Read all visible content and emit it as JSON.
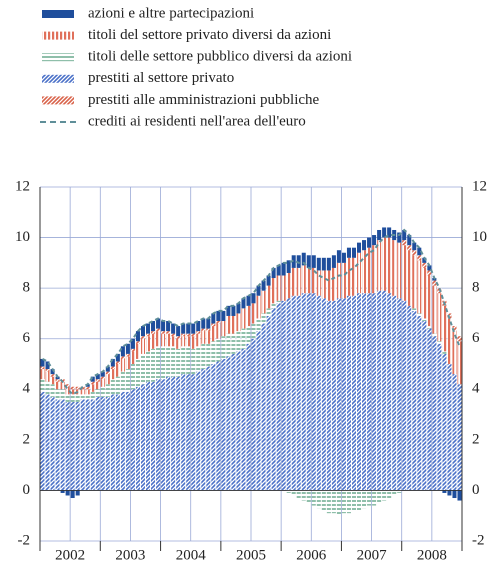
{
  "chart_data": {
    "type": "stacked_bar_line",
    "x_labels": [
      "2002",
      "2003",
      "2004",
      "2005",
      "2006",
      "2007",
      "2008"
    ],
    "ylim": [
      -2,
      12
    ],
    "yticks": [
      -2,
      0,
      2,
      4,
      6,
      8,
      10,
      12
    ],
    "grid": true,
    "right_axis_labels": true,
    "series": [
      {
        "name": "azioni e altre partecipazioni",
        "color": "#1f4e9c",
        "pattern": "solid",
        "stack_order": 4,
        "values": [
          0.3,
          0.3,
          0.2,
          0.1,
          -0.1,
          -0.2,
          -0.3,
          -0.2,
          0.0,
          0.1,
          0.2,
          0.2,
          0.2,
          0.2,
          0.3,
          0.3,
          0.4,
          0.4,
          0.4,
          0.4,
          0.4,
          0.4,
          0.4,
          0.4,
          0.4,
          0.4,
          0.4,
          0.4,
          0.4,
          0.4,
          0.4,
          0.4,
          0.4,
          0.4,
          0.4,
          0.4,
          0.4,
          0.4,
          0.4,
          0.4,
          0.4,
          0.4,
          0.4,
          0.4,
          0.4,
          0.4,
          0.4,
          0.4,
          0.5,
          0.5,
          0.5,
          0.5,
          0.5,
          0.5,
          0.5,
          0.5,
          0.5,
          0.5,
          0.5,
          0.5,
          0.4,
          0.4,
          0.4,
          0.4,
          0.4,
          0.4,
          0.4,
          0.4,
          0.4,
          0.4,
          0.4,
          0.4,
          0.4,
          0.4,
          0.3,
          0.3,
          0.2,
          0.2,
          0.1,
          0.0,
          -0.1,
          -0.2,
          -0.3,
          -0.4
        ]
      },
      {
        "name": "titoli del settore privato diversi da azioni",
        "color": "#e0705a",
        "pattern": "vertical",
        "stack_order": 2,
        "values": [
          0.4,
          0.4,
          0.3,
          0.3,
          0.3,
          0.3,
          0.2,
          0.2,
          0.2,
          0.2,
          0.3,
          0.3,
          0.3,
          0.4,
          0.4,
          0.5,
          0.5,
          0.5,
          0.5,
          0.6,
          0.6,
          0.6,
          0.6,
          0.6,
          0.5,
          0.5,
          0.4,
          0.4,
          0.4,
          0.4,
          0.5,
          0.5,
          0.5,
          0.5,
          0.6,
          0.6,
          0.6,
          0.7,
          0.7,
          0.7,
          0.8,
          0.8,
          0.8,
          0.9,
          0.9,
          0.9,
          1.0,
          1.0,
          1.0,
          1.0,
          1.1,
          1.1,
          1.1,
          1.0,
          1.0,
          1.0,
          1.1,
          1.2,
          1.3,
          1.4,
          1.4,
          1.5,
          1.5,
          1.6,
          1.7,
          1.8,
          1.9,
          2.0,
          2.1,
          2.2,
          2.2,
          2.2,
          2.2,
          2.2,
          2.1,
          2.1,
          2.0,
          2.0,
          1.9,
          1.9,
          1.8,
          1.8,
          1.7,
          1.7
        ]
      },
      {
        "name": "titoli delle settore pubblico diversi da azioni",
        "color": "#8fbfaa",
        "pattern": "horizontal",
        "stack_order": 1,
        "values": [
          0.5,
          0.5,
          0.5,
          0.4,
          0.4,
          0.3,
          0.3,
          0.3,
          0.2,
          0.2,
          0.3,
          0.3,
          0.4,
          0.5,
          0.6,
          0.7,
          0.8,
          0.9,
          1.0,
          1.1,
          1.2,
          1.2,
          1.3,
          1.3,
          1.3,
          1.2,
          1.2,
          1.1,
          1.1,
          1.1,
          1.0,
          1.0,
          1.0,
          0.9,
          0.9,
          0.9,
          0.9,
          0.9,
          0.8,
          0.8,
          0.8,
          0.7,
          0.6,
          0.5,
          0.4,
          0.3,
          0.2,
          0.1,
          0.0,
          -0.1,
          -0.2,
          -0.3,
          -0.4,
          -0.5,
          -0.6,
          -0.7,
          -0.8,
          -0.9,
          -0.9,
          -1.0,
          -0.9,
          -0.9,
          -0.8,
          -0.8,
          -0.7,
          -0.6,
          -0.6,
          -0.5,
          -0.4,
          -0.3,
          -0.2,
          -0.1,
          0.0,
          0.0,
          0.1,
          0.1,
          0.1,
          0.1,
          0.1,
          0.1,
          0.1,
          0.0,
          0.0,
          0.0
        ]
      },
      {
        "name": "prestiti al settore privato",
        "color": "#4a70c8",
        "pattern": "diagonal",
        "stack_order": 0,
        "values": [
          3.9,
          3.8,
          3.7,
          3.6,
          3.6,
          3.5,
          3.5,
          3.5,
          3.6,
          3.6,
          3.6,
          3.7,
          3.7,
          3.7,
          3.8,
          3.8,
          3.9,
          3.9,
          4.0,
          4.1,
          4.2,
          4.3,
          4.3,
          4.4,
          4.4,
          4.5,
          4.5,
          4.5,
          4.6,
          4.6,
          4.6,
          4.7,
          4.8,
          4.9,
          5.0,
          5.1,
          5.2,
          5.3,
          5.4,
          5.5,
          5.6,
          5.8,
          6.0,
          6.3,
          6.6,
          6.9,
          7.2,
          7.4,
          7.5,
          7.6,
          7.7,
          7.7,
          7.8,
          7.8,
          7.8,
          7.7,
          7.6,
          7.5,
          7.5,
          7.6,
          7.6,
          7.7,
          7.7,
          7.8,
          7.8,
          7.8,
          7.8,
          7.9,
          7.9,
          7.8,
          7.7,
          7.6,
          7.5,
          7.3,
          7.1,
          6.9,
          6.7,
          6.4,
          6.1,
          5.8,
          5.4,
          5.0,
          4.6,
          4.2
        ]
      },
      {
        "name": "prestiti alle amministrazioni pubbliche",
        "color": "#d9634a",
        "pattern": "diagonal",
        "stack_order": 3,
        "values": [
          0.1,
          0.1,
          0.1,
          0.1,
          0.1,
          0.1,
          0.1,
          0.1,
          0.1,
          0.1,
          0.1,
          0.1,
          0.1,
          0.1,
          0.1,
          0.1,
          0.1,
          0.1,
          0.1,
          0.1,
          0.1,
          0.1,
          0.1,
          0.1,
          0.1,
          0.1,
          0.1,
          0.1,
          0.1,
          0.1,
          0.1,
          0.1,
          0.1,
          0.1,
          0.1,
          0.1,
          0.0,
          0.0,
          0.0,
          0.0,
          0.0,
          0.0,
          0.0,
          0.0,
          0.0,
          0.0,
          0.0,
          0.0,
          0.0,
          0.0,
          0.0,
          0.0,
          0.0,
          0.0,
          0.0,
          0.0,
          0.0,
          0.0,
          0.0,
          0.0,
          0.0,
          0.0,
          0.0,
          0.0,
          0.0,
          0.0,
          0.0,
          0.0,
          0.0,
          0.0,
          0.0,
          0.0,
          0.2,
          0.2,
          0.2,
          0.2,
          0.2,
          0.2,
          0.2,
          0.2,
          0.2,
          0.2,
          0.2,
          0.2
        ]
      },
      {
        "name": "crediti ai residenti nell'area dell'euro",
        "color": "#5f8f99",
        "kind": "line",
        "style": "dashed",
        "values": [
          5.2,
          5.1,
          4.8,
          4.5,
          4.3,
          4.0,
          3.8,
          3.9,
          4.1,
          4.2,
          4.5,
          4.6,
          4.7,
          4.9,
          5.2,
          5.4,
          5.7,
          5.8,
          6.0,
          6.3,
          6.5,
          6.6,
          6.7,
          6.8,
          6.7,
          6.7,
          6.6,
          6.5,
          6.6,
          6.6,
          6.6,
          6.7,
          6.8,
          6.8,
          7.0,
          7.1,
          7.1,
          7.3,
          7.3,
          7.4,
          7.6,
          7.7,
          7.8,
          8.1,
          8.3,
          8.5,
          8.8,
          8.9,
          9.0,
          9.0,
          9.1,
          9.0,
          9.0,
          8.8,
          8.7,
          8.5,
          8.4,
          8.3,
          8.4,
          8.5,
          8.5,
          8.7,
          8.8,
          9.0,
          9.2,
          9.4,
          9.5,
          9.8,
          10.0,
          10.1,
          10.1,
          10.1,
          10.3,
          10.1,
          9.8,
          9.6,
          9.2,
          8.9,
          8.4,
          8.0,
          7.4,
          6.8,
          6.2,
          5.7
        ]
      }
    ]
  }
}
